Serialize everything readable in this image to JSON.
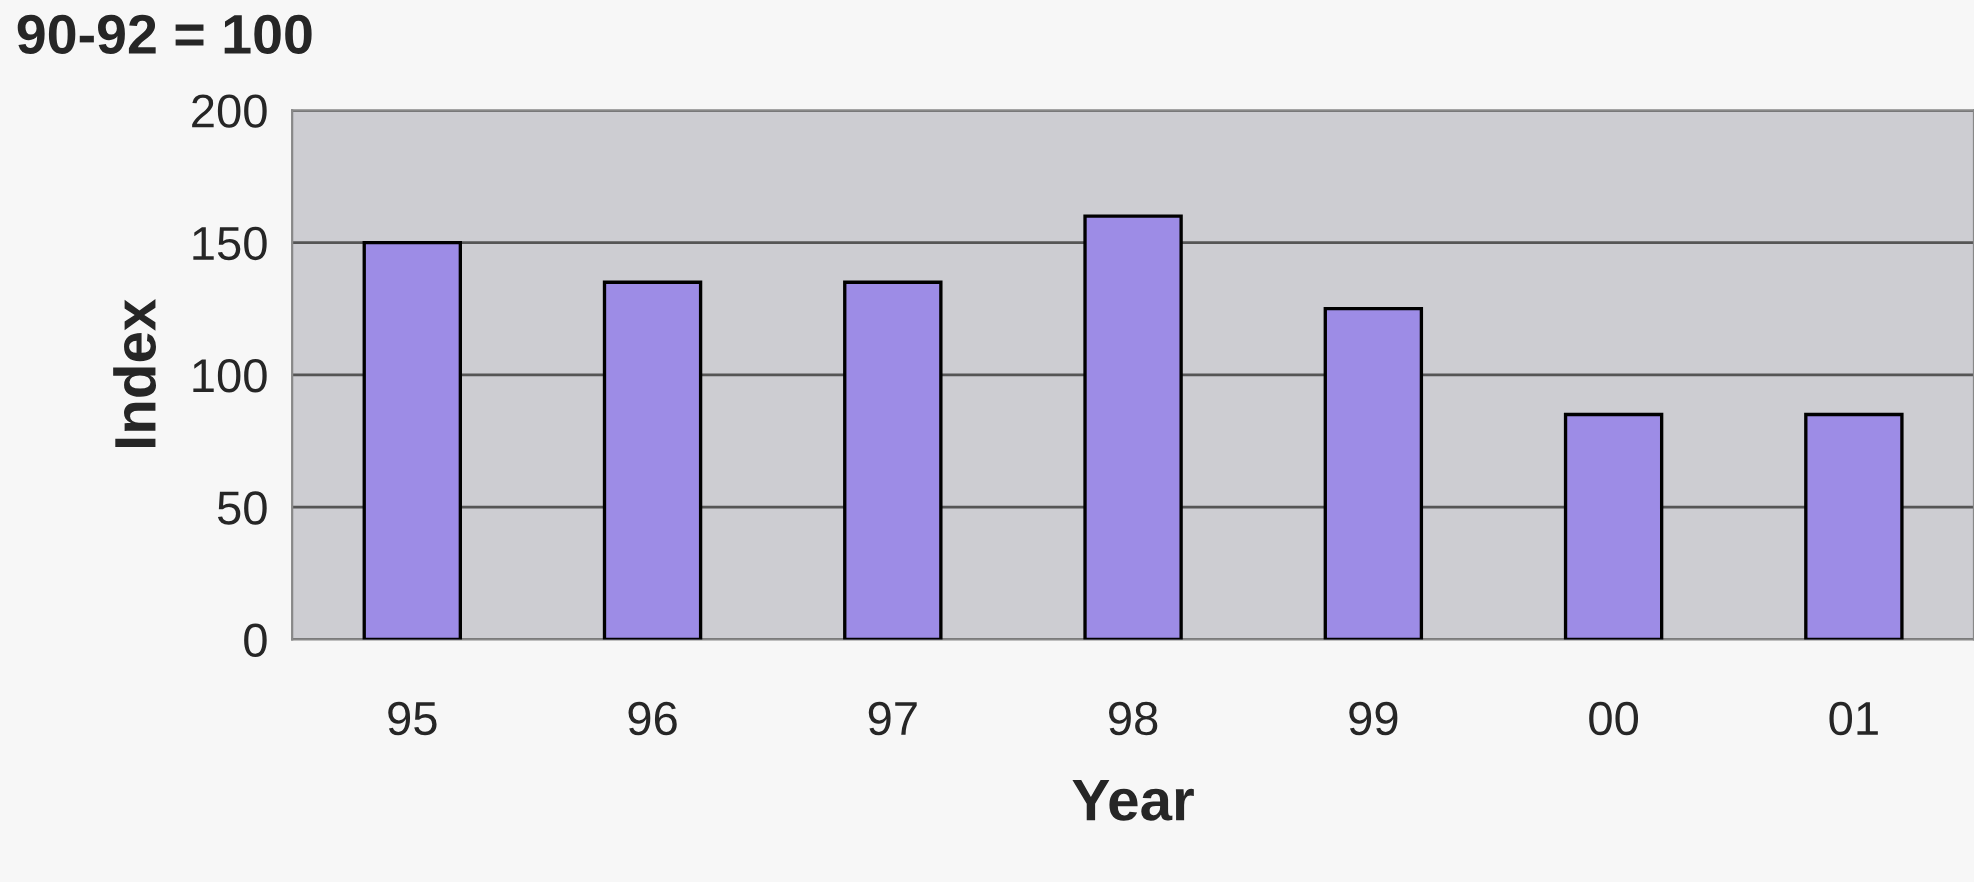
{
  "chart_data": {
    "type": "bar",
    "title": "90-92 = 100",
    "xlabel": "Year",
    "ylabel": "Index",
    "categories": [
      "95",
      "96",
      "97",
      "98",
      "99",
      "00",
      "01"
    ],
    "values": [
      150,
      135,
      135,
      160,
      125,
      85,
      85
    ],
    "color": "#9d8ce6",
    "ylim": [
      0,
      200
    ],
    "yticks": [
      0,
      50,
      100,
      150,
      200
    ],
    "grid": "y"
  }
}
